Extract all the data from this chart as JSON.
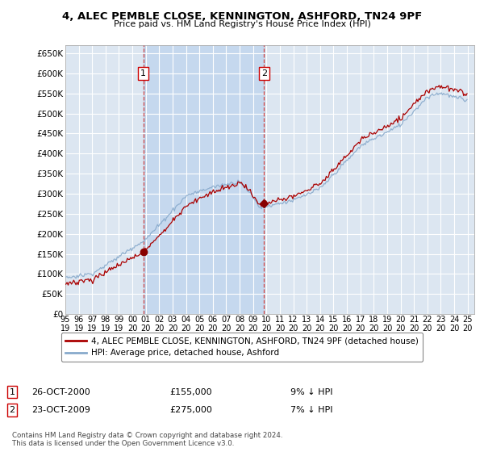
{
  "title": "4, ALEC PEMBLE CLOSE, KENNINGTON, ASHFORD, TN24 9PF",
  "subtitle": "Price paid vs. HM Land Registry's House Price Index (HPI)",
  "ylabel_ticks": [
    "£0",
    "£50K",
    "£100K",
    "£150K",
    "£200K",
    "£250K",
    "£300K",
    "£350K",
    "£400K",
    "£450K",
    "£500K",
    "£550K",
    "£600K",
    "£650K"
  ],
  "ytick_vals": [
    0,
    50000,
    100000,
    150000,
    200000,
    250000,
    300000,
    350000,
    400000,
    450000,
    500000,
    550000,
    600000,
    650000
  ],
  "ylim": [
    0,
    670000
  ],
  "xlim_start": 1995.0,
  "xlim_end": 2025.5,
  "purchase1": {
    "year": 2000.82,
    "price": 155000,
    "label": "1",
    "date": "26-OCT-2000",
    "hpi_diff": "9% ↓ HPI"
  },
  "purchase2": {
    "year": 2009.82,
    "price": 275000,
    "label": "2",
    "date": "23-OCT-2009",
    "hpi_diff": "7% ↓ HPI"
  },
  "legend_property": "4, ALEC PEMBLE CLOSE, KENNINGTON, ASHFORD, TN24 9PF (detached house)",
  "legend_hpi": "HPI: Average price, detached house, Ashford",
  "footnote": "Contains HM Land Registry data © Crown copyright and database right 2024.\nThis data is licensed under the Open Government Licence v3.0.",
  "line_color_property": "#aa0000",
  "line_color_hpi": "#88aacc",
  "background_color": "#dce6f1",
  "shaded_color": "#c5d8ee",
  "grid_color": "#ffffff",
  "vline_color": "#cc3333",
  "marker_color": "#880000"
}
